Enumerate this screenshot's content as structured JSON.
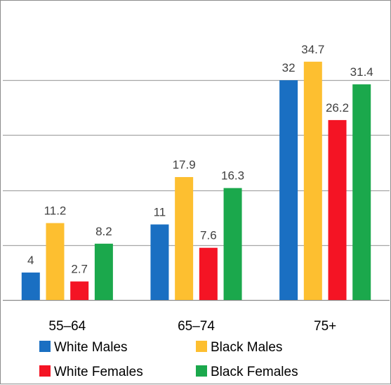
{
  "chart_data": {
    "type": "bar",
    "categories": [
      "55–64",
      "65–74",
      "75+"
    ],
    "series": [
      {
        "name": "White Males",
        "values": [
          4,
          11,
          32
        ],
        "color": "#1a6fc2"
      },
      {
        "name": "Black Males",
        "values": [
          11.2,
          17.9,
          34.7
        ],
        "color": "#fdbf30"
      },
      {
        "name": "White Females",
        "values": [
          2.7,
          7.6,
          26.2
        ],
        "color": "#f41424"
      },
      {
        "name": "Black Females",
        "values": [
          8.2,
          16.3,
          31.4
        ],
        "color": "#1ba84c"
      }
    ],
    "data_labels": [
      [
        "4",
        "11",
        "32"
      ],
      [
        "11.2",
        "17.9",
        "34.7"
      ],
      [
        "2.7",
        "7.6",
        "26.2"
      ],
      [
        "8.2",
        "16.3",
        "31.4"
      ]
    ],
    "ylim": [
      0,
      40
    ],
    "yticks": [
      0,
      8,
      16,
      24,
      32,
      40
    ],
    "grid": true,
    "legend_position": "bottom",
    "title": "",
    "xlabel": "",
    "ylabel": ""
  }
}
